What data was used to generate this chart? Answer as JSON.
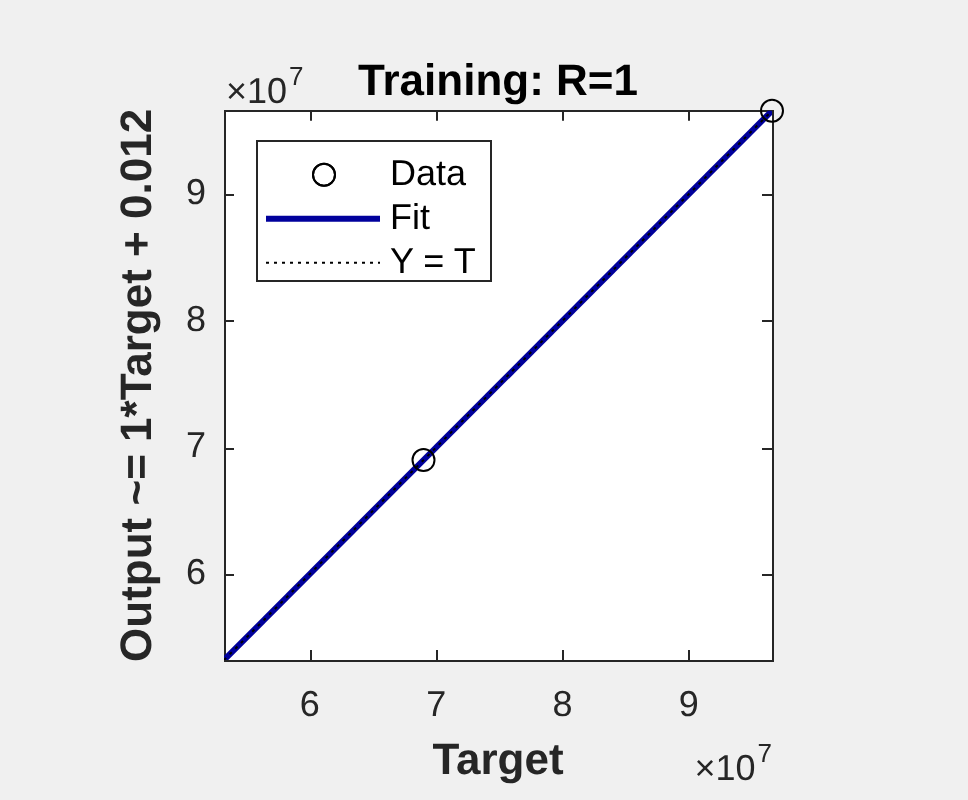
{
  "chart_data": {
    "type": "line",
    "title": "Training: R=1",
    "xlabel": "Target",
    "ylabel": "Output ~= 1*Target + 0.012",
    "annotations": [
      "×10$^{7}$",
      "×10$^{7}$"
    ],
    "xlim": [
      5.32,
      9.66
    ],
    "ylim": [
      5.32,
      9.66
    ],
    "xticks": [
      6,
      7,
      8,
      9
    ],
    "yticks": [
      6,
      7,
      8,
      9
    ],
    "series": [
      {
        "name": "Data",
        "type": "scatter",
        "marker": "circle",
        "color": "#000000",
        "x": [
          6.9,
          9.66
        ],
        "values": [
          6.9,
          9.66
        ]
      },
      {
        "name": "Fit",
        "color": "#00009c",
        "line_style": "solid",
        "x": [
          5.32,
          9.66
        ],
        "values": [
          5.32,
          9.66
        ]
      },
      {
        "name": "Y = T",
        "color": "#000000",
        "line_style": "dotted",
        "x": [
          5.32,
          9.66
        ],
        "values": [
          5.32,
          9.66
        ]
      }
    ],
    "legend": "top left"
  }
}
